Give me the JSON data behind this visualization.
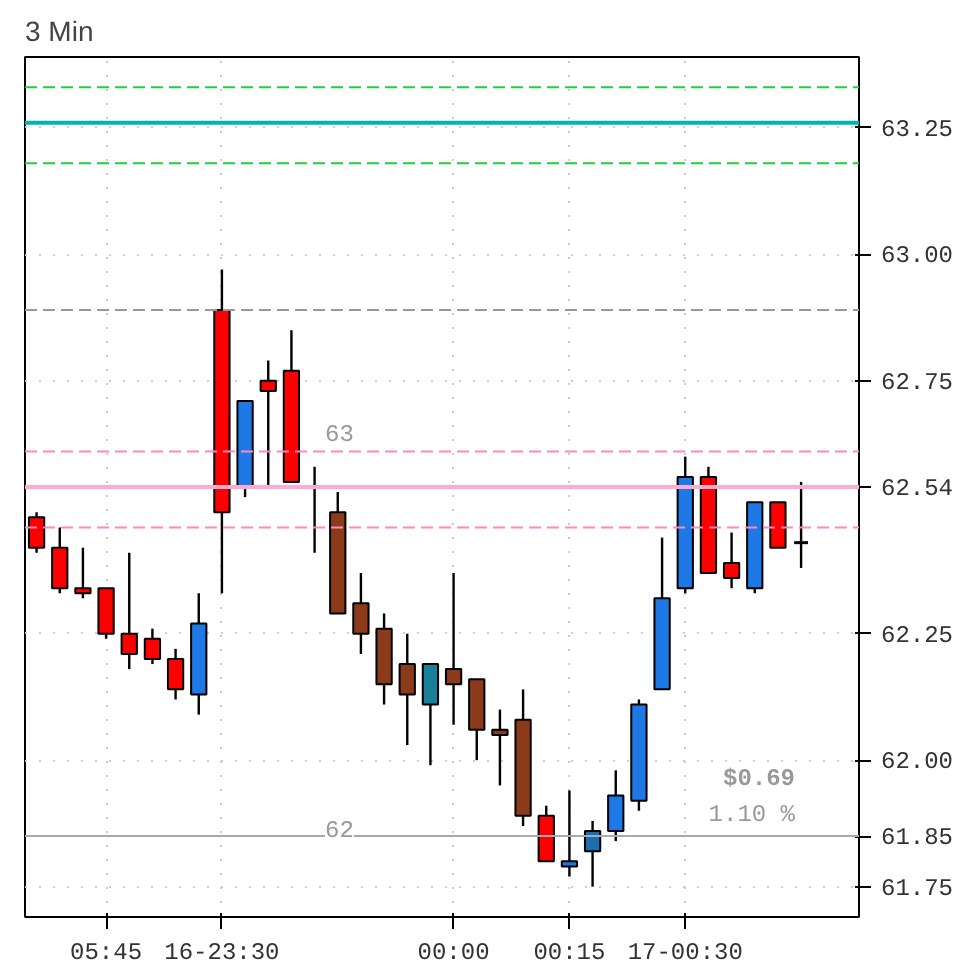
{
  "chart_data": {
    "type": "candlestick",
    "title": "3 Min",
    "categories": [
      null,
      null,
      null,
      "05:45",
      null,
      null,
      null,
      null,
      "16-23:30",
      null,
      null,
      null,
      null,
      null,
      null,
      null,
      null,
      null,
      "00:00",
      null,
      null,
      null,
      null,
      "00:15",
      null,
      null,
      null,
      null,
      "17-00:30",
      null,
      null,
      null,
      null,
      null
    ],
    "ohlc": [
      [
        62.48,
        62.49,
        62.41,
        62.42
      ],
      [
        62.42,
        62.46,
        62.33,
        62.34
      ],
      [
        62.34,
        62.42,
        62.32,
        62.33
      ],
      [
        62.34,
        62.34,
        62.24,
        62.25
      ],
      [
        62.25,
        62.41,
        62.18,
        62.21
      ],
      [
        62.24,
        62.26,
        62.19,
        62.2
      ],
      [
        62.2,
        62.22,
        62.12,
        62.14
      ],
      [
        62.13,
        62.33,
        62.09,
        62.27
      ],
      [
        62.89,
        62.97,
        62.33,
        62.49
      ],
      [
        62.54,
        62.71,
        62.52,
        62.71
      ],
      [
        62.75,
        62.79,
        62.54,
        62.73
      ],
      [
        62.77,
        62.85,
        62.55,
        62.55
      ],
      [
        62.54,
        62.58,
        62.41,
        62.54
      ],
      [
        62.49,
        62.53,
        62.29,
        62.29
      ],
      [
        62.31,
        62.37,
        62.21,
        62.25
      ],
      [
        62.26,
        62.29,
        62.11,
        62.15
      ],
      [
        62.19,
        62.25,
        62.03,
        62.13
      ],
      [
        62.11,
        62.19,
        61.99,
        62.19
      ],
      [
        62.18,
        62.37,
        62.07,
        62.15
      ],
      [
        62.16,
        62.16,
        62.0,
        62.06
      ],
      [
        62.06,
        62.1,
        61.95,
        62.05
      ],
      [
        62.08,
        62.14,
        61.87,
        61.89
      ],
      [
        61.89,
        61.91,
        61.8,
        61.8
      ],
      [
        61.79,
        61.94,
        61.77,
        61.8
      ],
      [
        61.82,
        61.88,
        61.75,
        61.86
      ],
      [
        61.86,
        61.98,
        61.84,
        61.93
      ],
      [
        61.92,
        62.12,
        61.9,
        62.11
      ],
      [
        62.14,
        62.44,
        62.14,
        62.32
      ],
      [
        62.34,
        62.6,
        62.33,
        62.56
      ],
      [
        62.56,
        62.58,
        62.37,
        62.37
      ],
      [
        62.39,
        62.45,
        62.34,
        62.36
      ],
      [
        62.34,
        62.51,
        62.33,
        62.51
      ],
      [
        62.51,
        62.51,
        62.42,
        62.42
      ],
      [
        62.43,
        62.55,
        62.38,
        62.43
      ]
    ],
    "colors": [
      "#ff0000",
      "#ff0000",
      "#ff0000",
      "#ff0000",
      "#ff0000",
      "#ff0000",
      "#ff0000",
      "#1e78e6",
      "#ff0000",
      "#1e78e6",
      "#ff0000",
      "#ff0000",
      "#000000",
      "#8b3a1a",
      "#8b3a1a",
      "#8b3a1a",
      "#8b3a1a",
      "#1a7f9a",
      "#8b3a1a",
      "#8b3a1a",
      "#8b3a1a",
      "#8b3a1a",
      "#ff0000",
      "#1e78e6",
      "#1a6fb0",
      "#1e78e6",
      "#1e78e6",
      "#1e78e6",
      "#1e78e6",
      "#ff0000",
      "#ff0000",
      "#1e78e6",
      "#ff0000",
      "#000000"
    ],
    "ref_lines": [
      {
        "axis": "y",
        "value": 63.33,
        "color": "#22cc44",
        "line_style": "dashed"
      },
      {
        "axis": "y",
        "value": 63.26,
        "color": "#00b4b4"
      },
      {
        "axis": "y",
        "value": 63.18,
        "color": "#22cc44",
        "line_style": "dashed"
      },
      {
        "axis": "y",
        "value": 62.89,
        "color": "#999999",
        "line_style": "dashed"
      },
      {
        "axis": "y",
        "value": 62.61,
        "color": "#ff88c0",
        "line_style": "dashed"
      },
      {
        "axis": "y",
        "value": 62.46,
        "color": "#ff88c0",
        "line_style": "dashed"
      },
      {
        "axis": "y",
        "value": 62.54,
        "color": "#ffaad0",
        "label": "62.54"
      },
      {
        "axis": "y",
        "value": 61.85,
        "color": "#aaaaaa",
        "label": "61.85"
      }
    ],
    "annotations": [
      "63",
      "62",
      "$0.69",
      "1.10 %"
    ],
    "ylim": [
      61.69,
      63.39
    ],
    "yticks": [
      {
        "value": 63.25,
        "label": "63.25"
      },
      {
        "value": 63.0,
        "label": "63.00"
      },
      {
        "value": 62.75,
        "label": "62.75"
      },
      {
        "value": 62.25,
        "label": "62.25"
      },
      {
        "value": 62.0,
        "label": "62.00"
      },
      {
        "value": 61.75,
        "label": "61.75"
      }
    ],
    "grid": true
  }
}
